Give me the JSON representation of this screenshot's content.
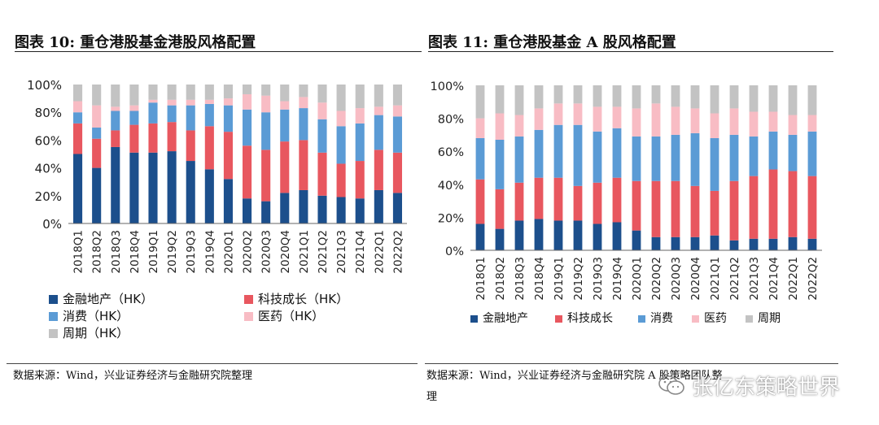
{
  "colors": {
    "finance": "#1c4f8c",
    "tech": "#e8575f",
    "consumer": "#5b9bd5",
    "pharma": "#f8bcc4",
    "cyclical": "#c3c3c3"
  },
  "chart_data": [
    {
      "type": "bar",
      "stacked": true,
      "title": "图表 10:  重仓港股基金港股风格配置",
      "categories": [
        "2018Q1",
        "2018Q2",
        "2018Q3",
        "2018Q4",
        "2019Q1",
        "2019Q2",
        "2019Q3",
        "2019Q4",
        "2020Q1",
        "2020Q2",
        "2020Q3",
        "2020Q4",
        "2021Q1",
        "2021Q2",
        "2021Q3",
        "2021Q4",
        "2022Q1",
        "2022Q2"
      ],
      "ylim": [
        0,
        100
      ],
      "yticks": [
        "0%",
        "20%",
        "40%",
        "60%",
        "80%",
        "100%"
      ],
      "legend_position": "bottom",
      "series": [
        {
          "name": "金融地产（HK）",
          "key": "finance",
          "values": [
            50,
            40,
            55,
            51,
            51,
            52,
            45,
            39,
            32,
            18,
            16,
            22,
            24,
            20,
            19,
            18,
            24,
            22
          ]
        },
        {
          "name": "科技成长（HK）",
          "key": "tech",
          "values": [
            22,
            21,
            12,
            20,
            21,
            21,
            22,
            31,
            34,
            38,
            37,
            37,
            36,
            31,
            24,
            27,
            29,
            29
          ]
        },
        {
          "name": "消费（HK）",
          "key": "consumer",
          "values": [
            8,
            8,
            14,
            10,
            15,
            12,
            18,
            16,
            19,
            26,
            27,
            23,
            23,
            24,
            27,
            27,
            25,
            26
          ]
        },
        {
          "name": "医药（HK）",
          "key": "pharma",
          "values": [
            8,
            16,
            3,
            4,
            2,
            4,
            4,
            3,
            5,
            11,
            12,
            6,
            8,
            12,
            11,
            11,
            6,
            8
          ]
        },
        {
          "name": "周期（HK）",
          "key": "cyclical",
          "values": [
            12,
            15,
            16,
            15,
            11,
            11,
            11,
            11,
            10,
            7,
            8,
            12,
            9,
            13,
            19,
            17,
            16,
            15
          ]
        }
      ],
      "source": "数据来源：Wind，兴业证券经济与金融研究院整理"
    },
    {
      "type": "bar",
      "stacked": true,
      "title": "图表 11:  重仓港股基金 A 股风格配置",
      "categories": [
        "2018Q1",
        "2018Q2",
        "2018Q3",
        "2018Q4",
        "2019Q1",
        "2019Q2",
        "2019Q3",
        "2019Q4",
        "2020Q1",
        "2020Q2",
        "2020Q3",
        "2020Q4",
        "2021Q1",
        "2021Q2",
        "2021Q3",
        "2021Q4",
        "2022Q1",
        "2022Q2"
      ],
      "ylim": [
        0,
        100
      ],
      "yticks": [
        "0%",
        "20%",
        "40%",
        "60%",
        "80%",
        "100%"
      ],
      "legend_position": "bottom",
      "series": [
        {
          "name": "金融地产",
          "key": "finance",
          "values": [
            16,
            13,
            18,
            19,
            18,
            18,
            16,
            17,
            12,
            8,
            8,
            8,
            9,
            6,
            7,
            7,
            8,
            7
          ]
        },
        {
          "name": "科技成长",
          "key": "tech",
          "values": [
            27,
            24,
            23,
            25,
            26,
            21,
            25,
            27,
            30,
            34,
            34,
            31,
            27,
            36,
            38,
            42,
            40,
            38
          ]
        },
        {
          "name": "消费",
          "key": "consumer",
          "values": [
            25,
            30,
            28,
            29,
            32,
            37,
            31,
            30,
            27,
            27,
            28,
            32,
            32,
            28,
            24,
            23,
            22,
            27
          ]
        },
        {
          "name": "医药",
          "key": "pharma",
          "values": [
            12,
            16,
            13,
            13,
            13,
            13,
            15,
            13,
            17,
            20,
            17,
            15,
            15,
            16,
            15,
            12,
            12,
            10
          ]
        },
        {
          "name": "周期",
          "key": "cyclical",
          "values": [
            20,
            17,
            18,
            14,
            11,
            11,
            13,
            13,
            14,
            11,
            13,
            14,
            17,
            14,
            16,
            16,
            18,
            18
          ]
        }
      ],
      "source_line1": "数据来源：Wind，兴业证券经济与金融研究院 A 股策略团队整",
      "source_line2": "理"
    }
  ],
  "watermark": "张亿东策略世界"
}
